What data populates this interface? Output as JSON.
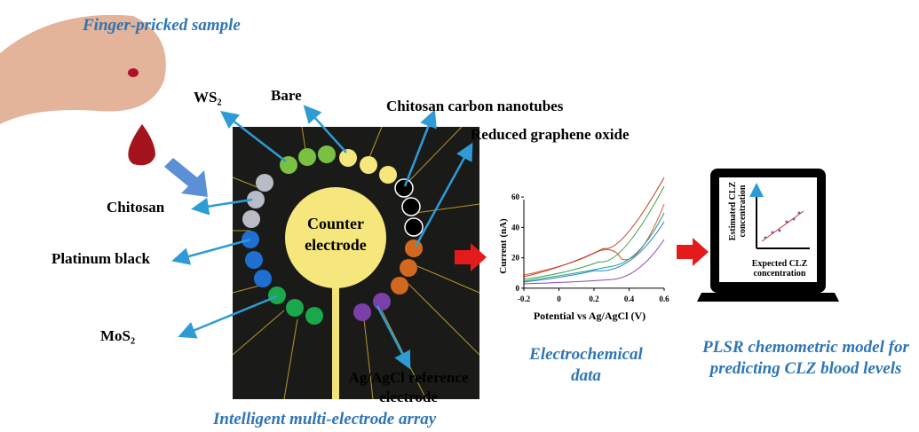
{
  "sample_label": "Finger-pricked sample",
  "electrode_labels": {
    "ws2": "WS₂",
    "bare": "Bare",
    "cnt": "Chitosan carbon nanotubes",
    "rgo": "Reduced graphene oxide",
    "chitosan": "Chitosan",
    "pt": "Platinum black",
    "mos2": "MoS₂",
    "ref": "Ag/AgCl reference electrode"
  },
  "counter_electrode": "Counter electrode",
  "array_title": "Intelligent multi-electrode array",
  "plot": {
    "y_label": "Current (nA)",
    "x_label": "Potential vs Ag/AgCl (V)",
    "xlim": [
      -0.2,
      0.6
    ],
    "ylim": [
      -3,
      70
    ],
    "xticks": [
      -0.2,
      0,
      0.2,
      0.4,
      0.6
    ],
    "yticks": [
      0,
      20,
      40,
      60
    ]
  },
  "electrochem_label": "Electrochemical data",
  "laptop": {
    "y_label": "Estimated CLZ concentration",
    "x_label": "Expected CLZ concentration"
  },
  "model_label": "PLSR chemometric model for predicting CLZ blood levels"
}
